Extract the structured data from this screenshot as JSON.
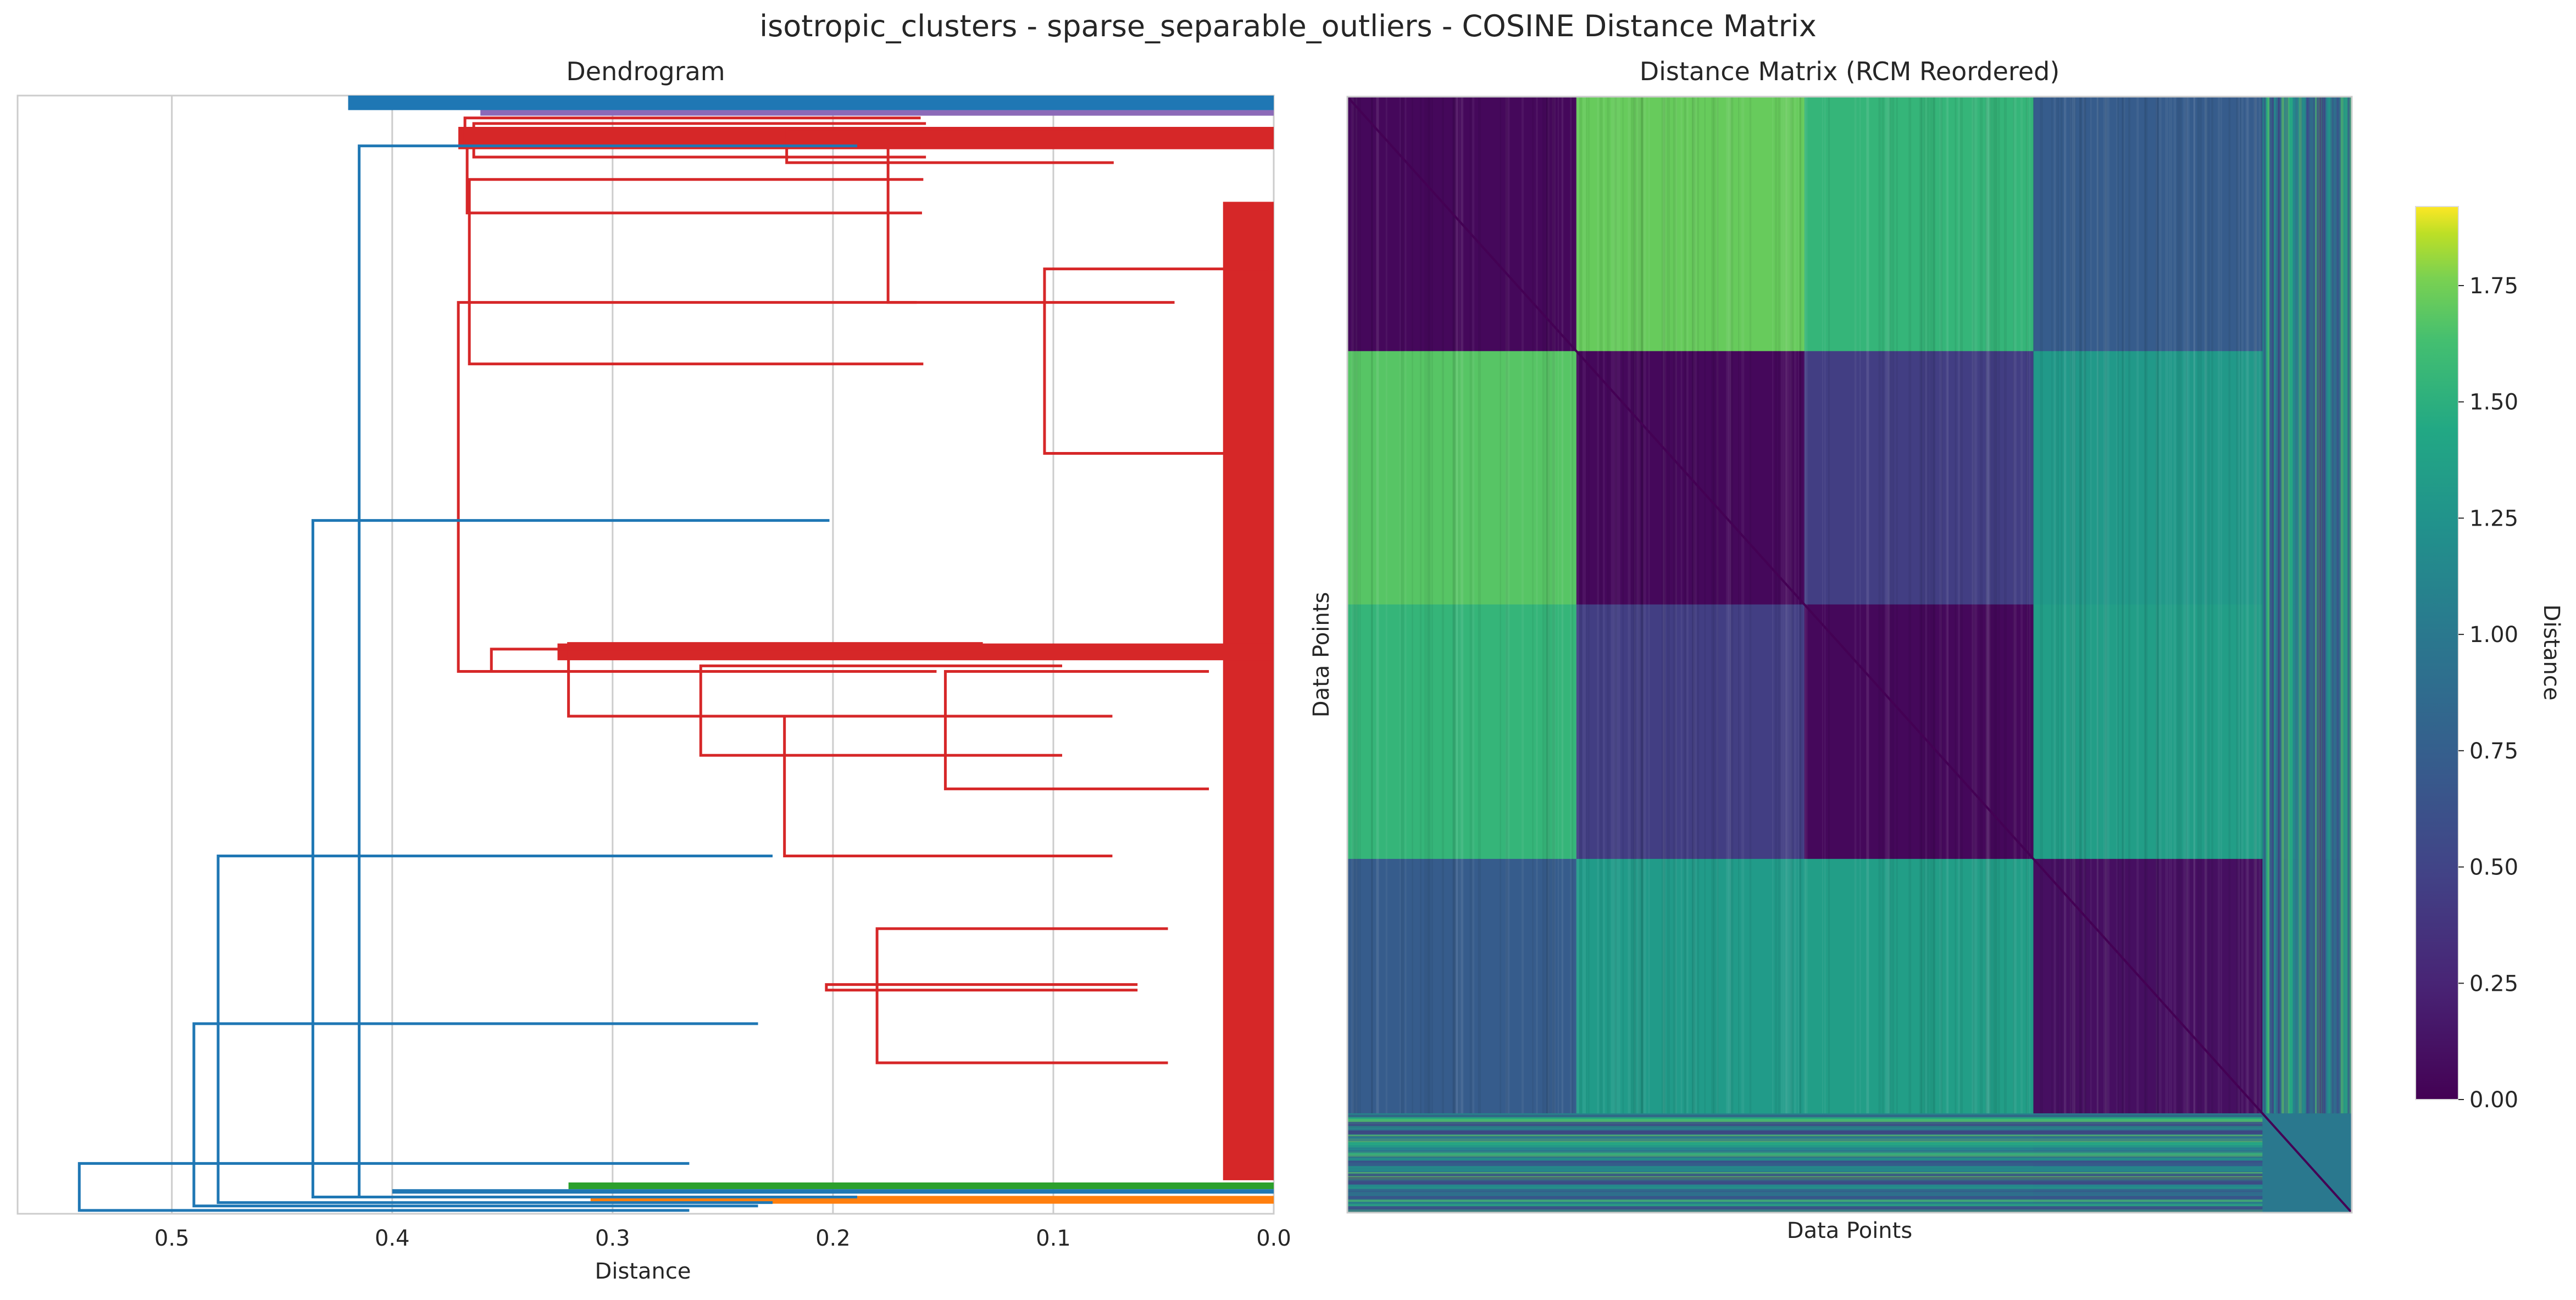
{
  "figure": {
    "suptitle": "isotropic_clusters - sparse_separable_outliers - COSINE Distance Matrix"
  },
  "chart_data": [
    {
      "type": "dendrogram",
      "title": "Dendrogram",
      "xlabel": "Distance",
      "ylabel": "",
      "xlim": [
        0.57,
        0.0
      ],
      "x_ticks": [
        0.5,
        0.4,
        0.3,
        0.2,
        0.1,
        0.0
      ],
      "x_tick_labels": [
        "0.5",
        "0.4",
        "0.3",
        "0.2",
        "0.1",
        "0.0"
      ],
      "grid": "vertical",
      "orientation": "left",
      "colors": {
        "main_cluster": "#d62728",
        "outliers": "#1f77b4",
        "cluster_green": "#2ca02c",
        "cluster_orange": "#ff7f0e"
      },
      "links": [
        {
          "h": 0.221,
          "a": 0.03,
          "b": 0.06,
          "cluster": "red"
        },
        {
          "h": 0.175,
          "a": 0.045,
          "b": 0.185,
          "cluster": "red"
        },
        {
          "h": 0.104,
          "a": 0.155,
          "b": 0.32,
          "cluster": "red"
        },
        {
          "h": 0.367,
          "a": 0.02,
          "b": 0.045,
          "cluster": "red"
        },
        {
          "h": 0.363,
          "a": 0.025,
          "b": 0.055,
          "cluster": "red"
        },
        {
          "h": 0.366,
          "a": 0.04,
          "b": 0.105,
          "cluster": "red"
        },
        {
          "h": 0.365,
          "a": 0.075,
          "b": 0.24,
          "cluster": "red"
        },
        {
          "h": 0.26,
          "a": 0.51,
          "b": 0.59,
          "cluster": "red"
        },
        {
          "h": 0.222,
          "a": 0.555,
          "b": 0.68,
          "cluster": "red"
        },
        {
          "h": 0.149,
          "a": 0.515,
          "b": 0.62,
          "cluster": "red"
        },
        {
          "h": 0.18,
          "a": 0.745,
          "b": 0.865,
          "cluster": "red"
        },
        {
          "h": 0.203,
          "a": 0.8,
          "b": 0.795,
          "cluster": "red"
        },
        {
          "h": 0.32,
          "a": 0.49,
          "b": 0.555,
          "cluster": "red"
        },
        {
          "h": 0.355,
          "a": 0.495,
          "b": 0.515,
          "cluster": "red"
        },
        {
          "h": 0.37,
          "a": 0.185,
          "b": 0.515,
          "cluster": "red"
        },
        {
          "h": 0.415,
          "a": 0.045,
          "b": 0.985,
          "cluster": "blue"
        },
        {
          "h": 0.436,
          "a": 0.38,
          "b": 0.985,
          "cluster": "blue"
        },
        {
          "h": 0.479,
          "a": 0.68,
          "b": 0.99,
          "cluster": "blue"
        },
        {
          "h": 0.49,
          "a": 0.83,
          "b": 0.993,
          "cluster": "blue"
        },
        {
          "h": 0.542,
          "a": 0.955,
          "b": 0.997,
          "cluster": "blue"
        }
      ]
    },
    {
      "type": "heatmap",
      "title": "Distance Matrix (RCM Reordered)",
      "xlabel": "Data Points",
      "ylabel": "Data Points",
      "colormap": "viridis",
      "colorbar": {
        "label": "Distance",
        "range": [
          0.0,
          1.92
        ],
        "ticks": [
          0.0,
          0.25,
          0.5,
          0.75,
          1.0,
          1.25,
          1.5,
          1.75
        ],
        "tick_labels": [
          "0.00",
          "0.25",
          "0.50",
          "0.75",
          "1.00",
          "1.25",
          "1.50",
          "1.75"
        ]
      },
      "block_boundaries": [
        0.0,
        0.228,
        0.455,
        0.683,
        0.911,
        1.0
      ],
      "block_matrix": [
        [
          0.05,
          1.72,
          1.55,
          0.72,
          1.1
        ],
        [
          1.68,
          0.05,
          0.45,
          1.3,
          1.1
        ],
        [
          1.55,
          0.45,
          0.05,
          1.35,
          1.1
        ],
        [
          0.72,
          1.32,
          1.35,
          0.1,
          1.0
        ],
        [
          1.1,
          1.1,
          1.1,
          1.0,
          1.0
        ]
      ]
    }
  ]
}
